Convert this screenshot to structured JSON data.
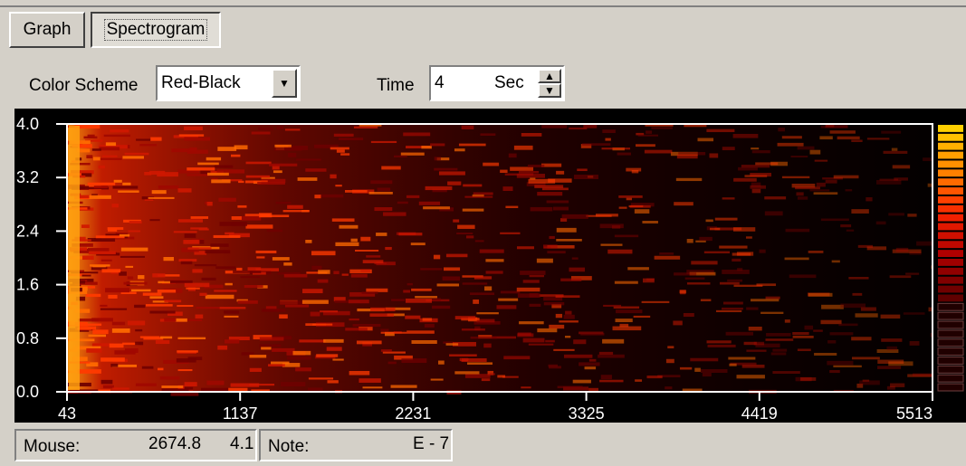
{
  "tabs": [
    {
      "label": "Graph",
      "active": false
    },
    {
      "label": "Spectrogram",
      "active": true
    }
  ],
  "controls": {
    "color_scheme_label": "Color Scheme",
    "color_scheme_value": "Red-Black",
    "time_label": "Time",
    "time_value": "4",
    "time_unit": "Sec"
  },
  "spectrogram": {
    "y_ticks": [
      "4.0",
      "3.2",
      "2.4",
      "1.6",
      "0.8",
      "0.0"
    ],
    "x_ticks": [
      "43",
      "1137",
      "2231",
      "3325",
      "4419",
      "5513"
    ],
    "color_scheme": "red-black",
    "colors": {
      "background": "#000000",
      "low": "#300000",
      "mid": "#d01000",
      "high": "#ffb000",
      "frame": "#ffffff"
    }
  },
  "status": {
    "mouse_label": "Mouse:",
    "mouse_x": "2674.8",
    "mouse_y": "4.1",
    "note_label": "Note:",
    "note_value": "E - 7"
  }
}
